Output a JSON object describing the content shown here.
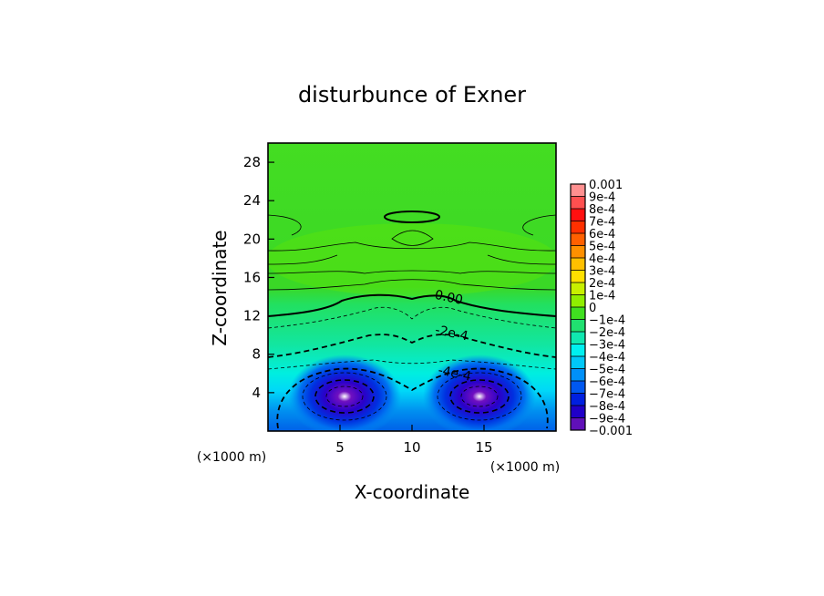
{
  "chart_data": {
    "type": "heatmap",
    "title": "disturbunce of Exner",
    "xlabel": "X-coordinate",
    "ylabel": "Z-coordinate",
    "x_unit": "(×1000 m)",
    "y_unit": "(×1000 m)",
    "xlim": [
      0,
      20
    ],
    "ylim": [
      0,
      30
    ],
    "x_ticks": [
      5,
      10,
      15
    ],
    "y_ticks": [
      4,
      8,
      12,
      16,
      20,
      24,
      28
    ],
    "contour_labels": [
      {
        "text": "0.00",
        "x": 12.5,
        "z": 13.5
      },
      {
        "text": "-2e-4",
        "x": 12.7,
        "z": 9.8
      },
      {
        "text": "-4e-4",
        "x": 12.9,
        "z": 5.6
      }
    ],
    "colorbar": {
      "levels": [
        "0.001",
        "9e-4",
        "8e-4",
        "7e-4",
        "6e-4",
        "5e-4",
        "4e-4",
        "3e-4",
        "2e-4",
        "1e-4",
        "0",
        "−1e-4",
        "−2e-4",
        "−3e-4",
        "−4e-4",
        "−5e-4",
        "−6e-4",
        "−7e-4",
        "−8e-4",
        "−9e-4",
        "−0.001"
      ],
      "colors": [
        "#ff9090",
        "#ff5050",
        "#ff1010",
        "#ff3000",
        "#ff6000",
        "#ff9000",
        "#ffc000",
        "#ffe000",
        "#c8f000",
        "#90ee00",
        "#40e020",
        "#20e070",
        "#10e8b0",
        "#00f0f0",
        "#00c8f8",
        "#0090f8",
        "#0058f0",
        "#0020e0",
        "#2000c8",
        "#6010b8"
      ]
    }
  }
}
